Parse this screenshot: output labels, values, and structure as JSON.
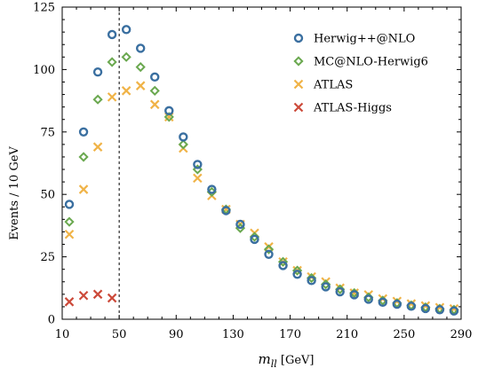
{
  "chart_data": {
    "type": "scatter",
    "xlabel_var": "m",
    "xlabel_sub": "ll",
    "xlabel_unit": " [GeV]",
    "ylabel": "Events / 10 GeV",
    "xlim": [
      10,
      290
    ],
    "ylim": [
      0,
      125
    ],
    "xticks": [
      10,
      50,
      90,
      130,
      170,
      210,
      250,
      290
    ],
    "yticks": [
      0,
      25,
      50,
      75,
      100,
      125
    ],
    "vline_x": 50,
    "legend_position": "top-right",
    "grid": false,
    "series": [
      {
        "name": "Herwig++@NLO",
        "marker": "circle",
        "color": "#3a6fa0",
        "x": [
          15,
          25,
          35,
          45,
          55,
          65,
          75,
          85,
          95,
          105,
          115,
          125,
          135,
          145,
          155,
          165,
          175,
          185,
          195,
          205,
          215,
          225,
          235,
          245,
          255,
          265,
          275,
          285
        ],
        "y": [
          46,
          75,
          99,
          114,
          116,
          108.5,
          97,
          83.5,
          73,
          62,
          52,
          43.5,
          38,
          32,
          26,
          21.5,
          18,
          15.5,
          13,
          11,
          9.8,
          8,
          6.8,
          6,
          5.2,
          4.3,
          3.8,
          3.3
        ]
      },
      {
        "name": "MC@NLO-Herwig6",
        "marker": "diamond",
        "color": "#6aa84f",
        "x": [
          15,
          25,
          35,
          45,
          55,
          65,
          75,
          85,
          95,
          105,
          115,
          125,
          135,
          145,
          155,
          165,
          175,
          185,
          195,
          205,
          215,
          225,
          235,
          245,
          255,
          265,
          275,
          285
        ],
        "y": [
          39,
          65,
          88,
          103,
          105,
          101,
          91.5,
          81,
          70,
          60,
          51,
          44,
          36.5,
          33,
          28,
          23,
          19.5,
          16.5,
          14,
          12,
          10.5,
          8.8,
          7.5,
          6.5,
          5.6,
          4.8,
          4.2,
          3.8
        ]
      },
      {
        "name": "ATLAS",
        "marker": "x",
        "color": "#f0b347",
        "x": [
          15,
          25,
          35,
          45,
          55,
          65,
          75,
          85,
          95,
          105,
          115,
          125,
          135,
          145,
          155,
          165,
          175,
          185,
          195,
          205,
          215,
          225,
          235,
          245,
          255,
          265,
          275,
          285
        ],
        "y": [
          34,
          52,
          69,
          89,
          91.5,
          93.5,
          86,
          81,
          68.5,
          56.5,
          49.5,
          44,
          38,
          34.5,
          29,
          23,
          19.5,
          17,
          15,
          12.5,
          10.5,
          9.8,
          8.2,
          7.2,
          6.2,
          5.4,
          4.7,
          4.2
        ]
      },
      {
        "name": "ATLAS-Higgs",
        "marker": "x",
        "color": "#cc4a3a",
        "x": [
          15,
          25,
          35,
          45
        ],
        "y": [
          7,
          9.5,
          10,
          8.5
        ]
      }
    ]
  }
}
